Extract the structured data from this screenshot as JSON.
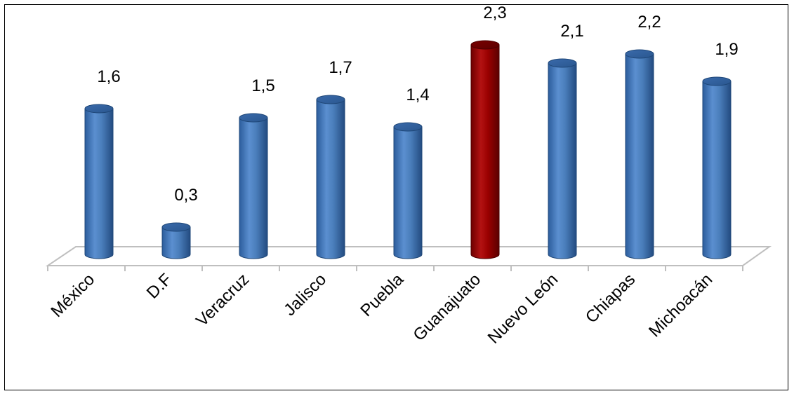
{
  "chart_data": {
    "type": "bar",
    "categories": [
      "México",
      "D.F",
      "Veracruz",
      "Jalisco",
      "Puebla",
      "Guanajuato",
      "Nuevo León",
      "Chiapas",
      "Michoacán"
    ],
    "values": [
      1.6,
      0.3,
      1.5,
      1.7,
      1.4,
      2.3,
      2.1,
      2.2,
      1.9
    ],
    "value_labels": [
      "1,6",
      "0,3",
      "1,5",
      "1,7",
      "1,4",
      "2,3",
      "2,1",
      "2,2",
      "1,9"
    ],
    "highlight_index": 5,
    "title": "",
    "xlabel": "",
    "ylabel": "",
    "ylim": [
      0,
      2.5
    ],
    "grid": false,
    "legend": "none",
    "colors": {
      "bar": "#4a7ebb",
      "highlight": "#a00000",
      "floor": "#bfbfbf"
    }
  }
}
